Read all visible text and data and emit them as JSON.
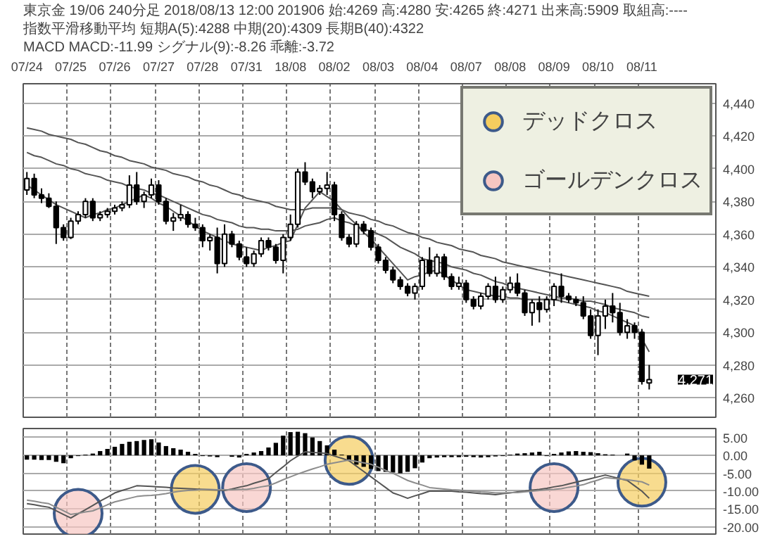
{
  "chart_data": [
    {
      "type": "candlestick",
      "title": "東京金 19/06 240分足 2018/08/13 12:00 201906 始:4269 高:4280 安:4265 終:4271 出来高:5909 取組高:----",
      "subtitle": "指数平滑移動平均 短期A(5):4288 中期(20):4309 長期B(40):4322",
      "categories": [
        "07/24",
        null,
        null,
        null,
        null,
        null,
        "07/25",
        null,
        null,
        null,
        null,
        null,
        "07/26",
        null,
        null,
        null,
        null,
        null,
        "07/27",
        null,
        null,
        null,
        null,
        null,
        "07/28",
        null,
        null,
        null,
        null,
        null,
        "07/31",
        null,
        null,
        null,
        null,
        null,
        "18/08",
        null,
        null,
        null,
        null,
        null,
        "08/02",
        null,
        null,
        null,
        null,
        null,
        "08/03",
        null,
        null,
        null,
        null,
        null,
        "08/04",
        null,
        null,
        null,
        null,
        null,
        "08/07",
        null,
        null,
        null,
        null,
        null,
        "08/08",
        null,
        null,
        null,
        null,
        null,
        "08/09",
        null,
        null,
        null,
        null,
        null,
        "08/10",
        null,
        null,
        null,
        null,
        null,
        "08/11",
        null
      ],
      "ohlc": [
        [
          4387,
          4398,
          4384,
          4394
        ],
        [
          4394,
          4397,
          4382,
          4384
        ],
        [
          4384,
          4388,
          4379,
          4382
        ],
        [
          4382,
          4385,
          4376,
          4377
        ],
        [
          4377,
          4380,
          4354,
          4364
        ],
        [
          4364,
          4366,
          4356,
          4358
        ],
        [
          4358,
          4370,
          4357,
          4368
        ],
        [
          4368,
          4374,
          4366,
          4372
        ],
        [
          4372,
          4382,
          4370,
          4380
        ],
        [
          4380,
          4382,
          4368,
          4370
        ],
        [
          4370,
          4374,
          4368,
          4372
        ],
        [
          4372,
          4376,
          4370,
          4374
        ],
        [
          4374,
          4378,
          4372,
          4376
        ],
        [
          4376,
          4380,
          4374,
          4378
        ],
        [
          4378,
          4396,
          4376,
          4390
        ],
        [
          4390,
          4398,
          4378,
          4380
        ],
        [
          4380,
          4386,
          4376,
          4384
        ],
        [
          4384,
          4394,
          4382,
          4390
        ],
        [
          4390,
          4393,
          4378,
          4380
        ],
        [
          4380,
          4382,
          4366,
          4368
        ],
        [
          4368,
          4373,
          4362,
          4370
        ],
        [
          4370,
          4378,
          4368,
          4372
        ],
        [
          4372,
          4374,
          4364,
          4366
        ],
        [
          4366,
          4370,
          4362,
          4364
        ],
        [
          4364,
          4366,
          4352,
          4356
        ],
        [
          4356,
          4360,
          4350,
          4358
        ],
        [
          4358,
          4364,
          4336,
          4342
        ],
        [
          4342,
          4366,
          4340,
          4360
        ],
        [
          4360,
          4362,
          4352,
          4354
        ],
        [
          4354,
          4356,
          4344,
          4346
        ],
        [
          4346,
          4352,
          4340,
          4342
        ],
        [
          4342,
          4350,
          4340,
          4348
        ],
        [
          4348,
          4358,
          4346,
          4356
        ],
        [
          4356,
          4358,
          4350,
          4352
        ],
        [
          4352,
          4354,
          4342,
          4344
        ],
        [
          4344,
          4360,
          4336,
          4358
        ],
        [
          4358,
          4372,
          4356,
          4366
        ],
        [
          4366,
          4400,
          4364,
          4398
        ],
        [
          4398,
          4404,
          4390,
          4392
        ],
        [
          4392,
          4394,
          4382,
          4386
        ],
        [
          4386,
          4390,
          4384,
          4388
        ],
        [
          4388,
          4398,
          4384,
          4390
        ],
        [
          4390,
          4392,
          4368,
          4372
        ],
        [
          4372,
          4374,
          4356,
          4358
        ],
        [
          4358,
          4360,
          4352,
          4354
        ],
        [
          4354,
          4368,
          4352,
          4366
        ],
        [
          4366,
          4368,
          4360,
          4362
        ],
        [
          4362,
          4364,
          4350,
          4352
        ],
        [
          4352,
          4354,
          4342,
          4344
        ],
        [
          4344,
          4346,
          4336,
          4338
        ],
        [
          4338,
          4340,
          4330,
          4332
        ],
        [
          4332,
          4334,
          4326,
          4328
        ],
        [
          4328,
          4330,
          4322,
          4324
        ],
        [
          4324,
          4330,
          4320,
          4328
        ],
        [
          4328,
          4346,
          4326,
          4344
        ],
        [
          4344,
          4352,
          4334,
          4336
        ],
        [
          4336,
          4348,
          4334,
          4346
        ],
        [
          4346,
          4348,
          4332,
          4334
        ],
        [
          4334,
          4336,
          4326,
          4328
        ],
        [
          4328,
          4334,
          4326,
          4330
        ],
        [
          4330,
          4332,
          4318,
          4320
        ],
        [
          4320,
          4322,
          4314,
          4316
        ],
        [
          4316,
          4324,
          4314,
          4322
        ],
        [
          4322,
          4330,
          4320,
          4328
        ],
        [
          4328,
          4334,
          4318,
          4320
        ],
        [
          4320,
          4328,
          4318,
          4326
        ],
        [
          4326,
          4334,
          4324,
          4330
        ],
        [
          4330,
          4336,
          4322,
          4324
        ],
        [
          4324,
          4326,
          4310,
          4312
        ],
        [
          4312,
          4320,
          4304,
          4318
        ],
        [
          4318,
          4322,
          4306,
          4314
        ],
        [
          4314,
          4322,
          4312,
          4320
        ],
        [
          4320,
          4330,
          4316,
          4328
        ],
        [
          4328,
          4336,
          4318,
          4322
        ],
        [
          4322,
          4324,
          4318,
          4320
        ],
        [
          4320,
          4322,
          4316,
          4318
        ],
        [
          4318,
          4322,
          4308,
          4310
        ],
        [
          4310,
          4314,
          4296,
          4298
        ],
        [
          4298,
          4314,
          4286,
          4310
        ],
        [
          4310,
          4320,
          4302,
          4316
        ],
        [
          4316,
          4324,
          4306,
          4312
        ],
        [
          4312,
          4318,
          4298,
          4300
        ],
        [
          4300,
          4308,
          4296,
          4304
        ],
        [
          4304,
          4306,
          4296,
          4300
        ],
        [
          4300,
          4302,
          4268,
          4270
        ],
        [
          4269,
          4280,
          4265,
          4271
        ]
      ],
      "series": [
        {
          "type": "line",
          "color": "#555555",
          "values": [
            4390,
            4387,
            4384,
            4381,
            4378,
            4376,
            4374,
            4372,
            4370,
            4372,
            4373,
            4375,
            4376,
            4378,
            4380,
            4382,
            4384,
            4382,
            4379,
            4377,
            4374,
            4371,
            4368,
            4365,
            4362,
            4360,
            4358,
            4356,
            4354,
            4353,
            4352,
            4351,
            4350,
            4352,
            4353,
            4355,
            4356,
            4366,
            4376,
            4381,
            4386,
            4383,
            4380,
            4375,
            4370,
            4366,
            4361,
            4357,
            4352,
            4347,
            4342,
            4337,
            4332,
            4334,
            4335,
            4337,
            4338,
            4335,
            4332,
            4329,
            4326,
            4325,
            4324,
            4323,
            4322,
            4322,
            4321,
            4321,
            4320,
            4320,
            4320,
            4320,
            4320,
            4319,
            4318,
            4317,
            4316,
            4315,
            4313,
            4312,
            4310,
            4308,
            4306,
            4304,
            4296,
            4288
          ]
        },
        {
          "type": "line",
          "color": "#555555",
          "values": [
            4410,
            4408,
            4407,
            4405,
            4403,
            4402,
            4400,
            4399,
            4397,
            4396,
            4395,
            4393,
            4392,
            4391,
            4389,
            4388,
            4387,
            4385,
            4384,
            4382,
            4380,
            4378,
            4376,
            4374,
            4372,
            4371,
            4369,
            4368,
            4367,
            4365,
            4364,
            4364,
            4363,
            4363,
            4362,
            4362,
            4362,
            4363,
            4365,
            4366,
            4367,
            4369,
            4370,
            4368,
            4367,
            4365,
            4363,
            4362,
            4360,
            4358,
            4355,
            4352,
            4350,
            4348,
            4345,
            4344,
            4343,
            4342,
            4340,
            4339,
            4338,
            4336,
            4335,
            4333,
            4331,
            4330,
            4328,
            4327,
            4326,
            4325,
            4324,
            4323,
            4322,
            4321,
            4321,
            4320,
            4319,
            4319,
            4318,
            4317,
            4315,
            4314,
            4313,
            4312,
            4310,
            4309
          ]
        },
        {
          "type": "line",
          "color": "#555555",
          "values": [
            4425,
            4424,
            4423,
            4421,
            4420,
            4419,
            4418,
            4416,
            4415,
            4413,
            4411,
            4410,
            4408,
            4407,
            4405,
            4404,
            4403,
            4401,
            4400,
            4399,
            4397,
            4396,
            4395,
            4393,
            4392,
            4390,
            4389,
            4387,
            4385,
            4384,
            4382,
            4381,
            4380,
            4379,
            4377,
            4376,
            4375,
            4375,
            4375,
            4376,
            4376,
            4376,
            4376,
            4375,
            4373,
            4372,
            4371,
            4369,
            4368,
            4366,
            4365,
            4363,
            4361,
            4360,
            4358,
            4357,
            4355,
            4354,
            4353,
            4351,
            4350,
            4349,
            4347,
            4346,
            4345,
            4343,
            4342,
            4341,
            4340,
            4339,
            4338,
            4337,
            4336,
            4335,
            4334,
            4333,
            4332,
            4331,
            4330,
            4329,
            4328,
            4327,
            4325,
            4324,
            4323,
            4322
          ]
        }
      ],
      "ylim": [
        4248,
        4452
      ],
      "yticks": [
        {
          "value": 4260,
          "label": "4,260"
        },
        {
          "value": 4280,
          "label": "4,280"
        },
        {
          "value": 4300,
          "label": "4,300"
        },
        {
          "value": 4320,
          "label": "4,320"
        },
        {
          "value": 4340,
          "label": "4,340"
        },
        {
          "value": 4360,
          "label": "4,360"
        },
        {
          "value": 4380,
          "label": "4,380"
        },
        {
          "value": 4400,
          "label": "4,400"
        },
        {
          "value": 4420,
          "label": "4,420"
        },
        {
          "value": 4440,
          "label": "4,440"
        }
      ],
      "annotations": [
        "MACD MACD:-11.99 シグナル(9):-8.26 乖離:-3.72",
        "4,271"
      ],
      "grid": true
    },
    {
      "type": "bar",
      "categories": [
        null,
        null,
        null,
        null,
        null,
        null,
        null,
        null,
        null,
        null,
        null,
        null,
        null,
        null,
        null,
        null,
        null,
        null,
        null,
        null,
        null,
        null,
        null,
        null,
        null,
        null,
        null,
        null,
        null,
        null,
        null,
        null,
        null,
        null,
        null,
        null,
        null,
        null,
        null,
        null,
        null,
        null,
        null,
        null,
        null,
        null,
        null,
        null,
        null,
        null,
        null,
        null,
        null,
        null,
        null,
        null,
        null,
        null,
        null,
        null,
        null,
        null,
        null,
        null,
        null,
        null,
        null,
        null,
        null,
        null,
        null,
        null,
        null,
        null,
        null,
        null,
        null,
        null,
        null,
        null,
        null,
        null,
        null,
        null,
        null,
        null
      ],
      "series": [
        {
          "type": "bar",
          "color": "#000000",
          "values": [
            -1.2,
            -1.2,
            -1.3,
            -1.3,
            -1.8,
            -2.2,
            -0.8,
            -0.2,
            0.2,
            0.5,
            1.2,
            1.8,
            2.4,
            3.2,
            3.8,
            4.0,
            4.3,
            4.5,
            3.6,
            2.6,
            2.0,
            1.6,
            1.0,
            0.4,
            -0.2,
            -0.3,
            -0.5,
            null,
            -0.4,
            -0.6,
            0.4,
            0.8,
            1.2,
            2.2,
            3.5,
            5.5,
            6.5,
            6.6,
            6.2,
            5.0,
            4.0,
            2.8,
            1.6,
            0.2,
            -1.5,
            -2.6,
            -3.2,
            -3.8,
            -4.4,
            -4.6,
            -4.8,
            -5.0,
            -4.6,
            -3.6,
            -2.0,
            -0.8,
            -0.6,
            -0.5,
            -0.5,
            -0.5,
            -0.4,
            -0.5,
            -0.6,
            -0.5,
            -0.3,
            -0.2,
            0.2,
            0.5,
            0.6,
            0.8,
            1.0,
            -0.2,
            0.4,
            0.8,
            1.1,
            1.2,
            1.0,
            0.9,
            0.6,
            0.3,
            0.2,
            null,
            0.5,
            -1.4,
            -2.6,
            -3.7
          ]
        },
        {
          "type": "line",
          "color": "#555555",
          "values": [
            -13.5,
            -13.8,
            -14.2,
            -14.5,
            -15.5,
            -16.5,
            -17.5,
            -16.3,
            -15.2,
            -14,
            -12.8,
            -11.7,
            -10.5,
            -9.8,
            -9.2,
            -8.5,
            -8.6,
            -8.7,
            -8.8,
            -8.9,
            -9.1,
            -9.2,
            -9.3,
            -9.4,
            -9.5,
            -9.6,
            -9.7,
            -9.8,
            -9.4,
            -8.9,
            -8.5,
            -7.8,
            -7.2,
            -6.5,
            -4.8,
            -3.2,
            -1.5,
            -0.2,
            1.0,
            0.8,
            0.7,
            0.5,
            -0.2,
            -0.8,
            -1.5,
            -3,
            -4.5,
            -6,
            -7.5,
            -9,
            -10.5,
            -11.2,
            -12,
            -11.3,
            -10.7,
            -10,
            -10,
            -10,
            -10,
            -10.2,
            -10.3,
            -10.5,
            -10.7,
            -10.8,
            -11,
            -10.7,
            -10.5,
            -10.2,
            -10,
            -9.7,
            -9.5,
            -9.2,
            -8.8,
            -8.5,
            -8,
            -7.5,
            -7,
            -6.5,
            -6,
            -5.5,
            -6,
            -6.5,
            -7,
            -8.5,
            -10,
            -12
          ]
        },
        {
          "type": "line",
          "color": "#8c8c8c",
          "values": [
            -12.5,
            -12.8,
            -13.2,
            -13.5,
            -14.5,
            -15.5,
            -16.5,
            -16.2,
            -15.8,
            -15.5,
            -14.7,
            -13.8,
            -13,
            -12.5,
            -12,
            -11.5,
            -11.3,
            -11.2,
            -11,
            -10.7,
            -10.3,
            -10,
            -9.8,
            -9.7,
            -9.5,
            -9.5,
            -9.6,
            -9.6,
            -9.6,
            -9.5,
            -9.5,
            -9.2,
            -8.8,
            -8.5,
            -7.7,
            -6.8,
            -6,
            -5.2,
            -4.5,
            -3.8,
            -3.2,
            -2.5,
            -2.1,
            -1.7,
            -1.3,
            -1.7,
            -2.1,
            -2.5,
            -3.3,
            -4.2,
            -5,
            -6,
            -7,
            -7.7,
            -8.3,
            -9,
            -9.2,
            -9.4,
            -9.6,
            -9.7,
            -9.9,
            -10,
            -10.2,
            -10.3,
            -10.5,
            -10.5,
            -10.4,
            -10.4,
            -10.2,
            -10,
            -9.8,
            -9.6,
            -9.5,
            -9.3,
            -8.9,
            -8.6,
            -8.2,
            -7.5,
            -6.9,
            -6.2,
            -6.4,
            -6.6,
            -6.8,
            -7.1,
            -7.4,
            -8.3
          ]
        },
        {
          "type": "scatter",
          "name": "デッドクロス",
          "color": "#f5cd5f",
          "marker": "circle",
          "values": [
            null,
            null,
            null,
            null,
            null,
            null,
            null,
            null,
            null,
            null,
            null,
            null,
            null,
            null,
            null,
            null,
            null,
            null,
            null,
            null,
            null,
            null,
            null,
            -9.5,
            null,
            null,
            null,
            null,
            null,
            null,
            null,
            null,
            null,
            null,
            null,
            null,
            null,
            null,
            null,
            null,
            null,
            null,
            null,
            null,
            -1.4,
            null,
            null,
            null,
            null,
            null,
            null,
            null,
            null,
            null,
            null,
            null,
            null,
            null,
            null,
            null,
            null,
            null,
            null,
            null,
            null,
            null,
            null,
            null,
            null,
            null,
            null,
            null,
            null,
            null,
            null,
            null,
            null,
            null,
            null,
            null,
            null,
            null,
            null,
            null,
            -7.5,
            null
          ]
        },
        {
          "type": "scatter",
          "name": "ゴールデンクロス",
          "color": "#f7c6c2",
          "marker": "circle",
          "values": [
            null,
            null,
            null,
            null,
            null,
            null,
            null,
            -16.2,
            null,
            null,
            null,
            null,
            null,
            null,
            null,
            null,
            null,
            null,
            null,
            null,
            null,
            null,
            null,
            null,
            null,
            null,
            null,
            null,
            null,
            null,
            -9,
            null,
            null,
            null,
            null,
            null,
            null,
            null,
            null,
            null,
            null,
            null,
            null,
            null,
            null,
            null,
            null,
            null,
            null,
            null,
            null,
            null,
            null,
            null,
            null,
            null,
            null,
            null,
            null,
            null,
            null,
            null,
            null,
            null,
            null,
            null,
            null,
            null,
            null,
            null,
            null,
            null,
            -9,
            null,
            null,
            null,
            null,
            null,
            null,
            null,
            null,
            null,
            null,
            null,
            null,
            null
          ]
        }
      ],
      "ylim": [
        -22,
        7.5
      ],
      "yticks": [
        {
          "value": 5,
          "label": "5.00"
        },
        {
          "value": 0,
          "label": "0.00"
        },
        {
          "value": -5,
          "label": "-5.00"
        },
        {
          "value": -10,
          "label": "-10.00"
        },
        {
          "value": -15,
          "label": "-15.00"
        },
        {
          "value": -20,
          "label": "-20.00"
        }
      ],
      "tick_labels": "y",
      "grid": true,
      "legend": "top right"
    }
  ]
}
